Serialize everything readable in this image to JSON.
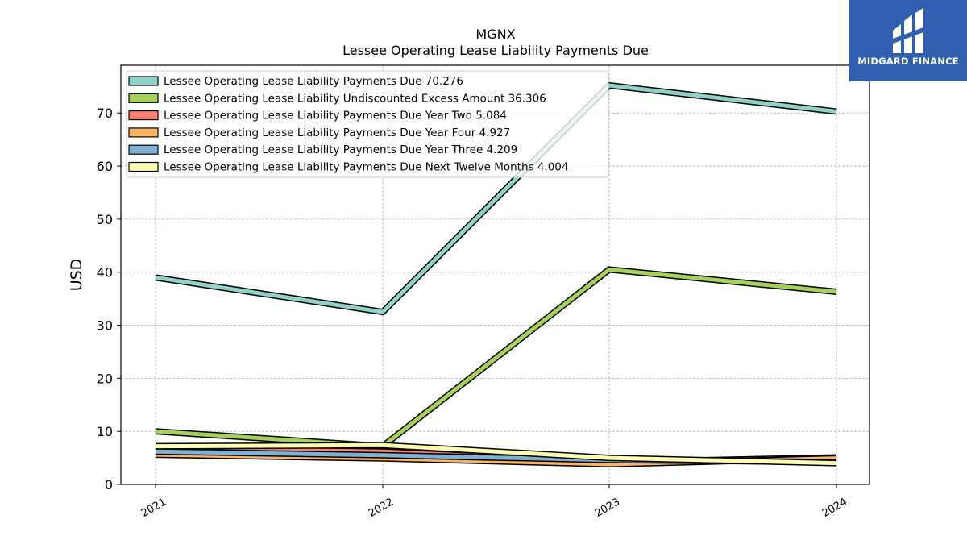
{
  "chart_data": {
    "type": "line",
    "title": "MGNX",
    "subtitle": "Lessee Operating Lease Liability Payments Due",
    "ylabel": "USD",
    "xlabel": "",
    "categories": [
      "2021",
      "2022",
      "2023",
      "2024"
    ],
    "ylim": [
      0,
      79
    ],
    "yticks": [
      0,
      10,
      20,
      30,
      40,
      50,
      60,
      70
    ],
    "grid": true,
    "legend_position": "top-left",
    "series": [
      {
        "name": "Lessee Operating Lease Liability Payments Due",
        "legend_value": "70.276",
        "color": "#8dd3c7",
        "values": [
          39.0,
          32.5,
          75.2,
          70.276
        ]
      },
      {
        "name": "Lessee Operating Lease Liability Undiscounted Excess Amount",
        "legend_value": "36.306",
        "color": "#a6d15a",
        "values": [
          10.0,
          7.2,
          40.5,
          36.306
        ]
      },
      {
        "name": "Lessee Operating Lease Liability Payments Due Year Two",
        "legend_value": "5.084",
        "color": "#fb8072",
        "values": [
          6.8,
          6.2,
          4.2,
          5.084
        ]
      },
      {
        "name": "Lessee Operating Lease Liability Payments Due Year Four",
        "legend_value": "4.927",
        "color": "#fdb462",
        "values": [
          5.6,
          4.9,
          3.8,
          4.927
        ]
      },
      {
        "name": "Lessee Operating Lease Liability Payments Due Year Three",
        "legend_value": "4.209",
        "color": "#80b1d3",
        "values": [
          6.2,
          5.5,
          4.6,
          4.209
        ]
      },
      {
        "name": "Lessee Operating Lease Liability Payments Due Next Twelve Months",
        "legend_value": "4.004",
        "color": "#ffffb3",
        "values": [
          7.2,
          7.4,
          5.0,
          4.004
        ]
      }
    ]
  },
  "logo": {
    "text": "MIDGARD FINANCE",
    "color": "#2f5fae"
  }
}
